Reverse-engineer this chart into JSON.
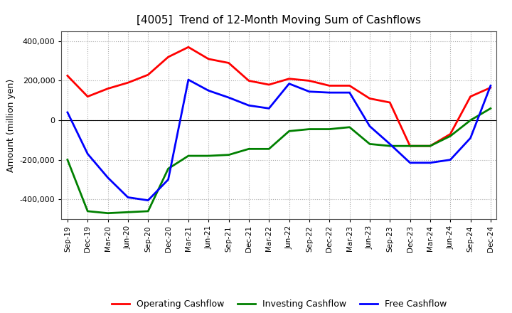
{
  "title": "[4005]  Trend of 12-Month Moving Sum of Cashflows",
  "ylabel": "Amount (million yen)",
  "x_labels": [
    "Sep-19",
    "Dec-19",
    "Mar-20",
    "Jun-20",
    "Sep-20",
    "Dec-20",
    "Mar-21",
    "Jun-21",
    "Sep-21",
    "Dec-21",
    "Mar-22",
    "Jun-22",
    "Sep-22",
    "Dec-22",
    "Mar-23",
    "Jun-23",
    "Sep-23",
    "Dec-23",
    "Mar-24",
    "Jun-24",
    "Sep-24",
    "Dec-24"
  ],
  "operating": [
    225000,
    120000,
    160000,
    190000,
    230000,
    320000,
    370000,
    310000,
    290000,
    200000,
    180000,
    210000,
    200000,
    175000,
    175000,
    110000,
    90000,
    -130000,
    -130000,
    -70000,
    120000,
    165000
  ],
  "investing": [
    -200000,
    -460000,
    -470000,
    -465000,
    -460000,
    -245000,
    -180000,
    -180000,
    -175000,
    -145000,
    -145000,
    -55000,
    -45000,
    -45000,
    -35000,
    -120000,
    -130000,
    -130000,
    -130000,
    -80000,
    0,
    60000
  ],
  "free": [
    40000,
    -170000,
    -290000,
    -390000,
    -405000,
    -300000,
    205000,
    150000,
    115000,
    75000,
    60000,
    185000,
    145000,
    140000,
    140000,
    -30000,
    -120000,
    -215000,
    -215000,
    -200000,
    -90000,
    175000
  ],
  "ylim": [
    -500000,
    450000
  ],
  "yticks": [
    -400000,
    -200000,
    0,
    200000,
    400000
  ],
  "operating_color": "#ff0000",
  "investing_color": "#008000",
  "free_color": "#0000ff",
  "line_width": 2.0,
  "background_color": "#ffffff",
  "plot_bg_color": "#ffffff",
  "grid_color": "#aaaaaa"
}
